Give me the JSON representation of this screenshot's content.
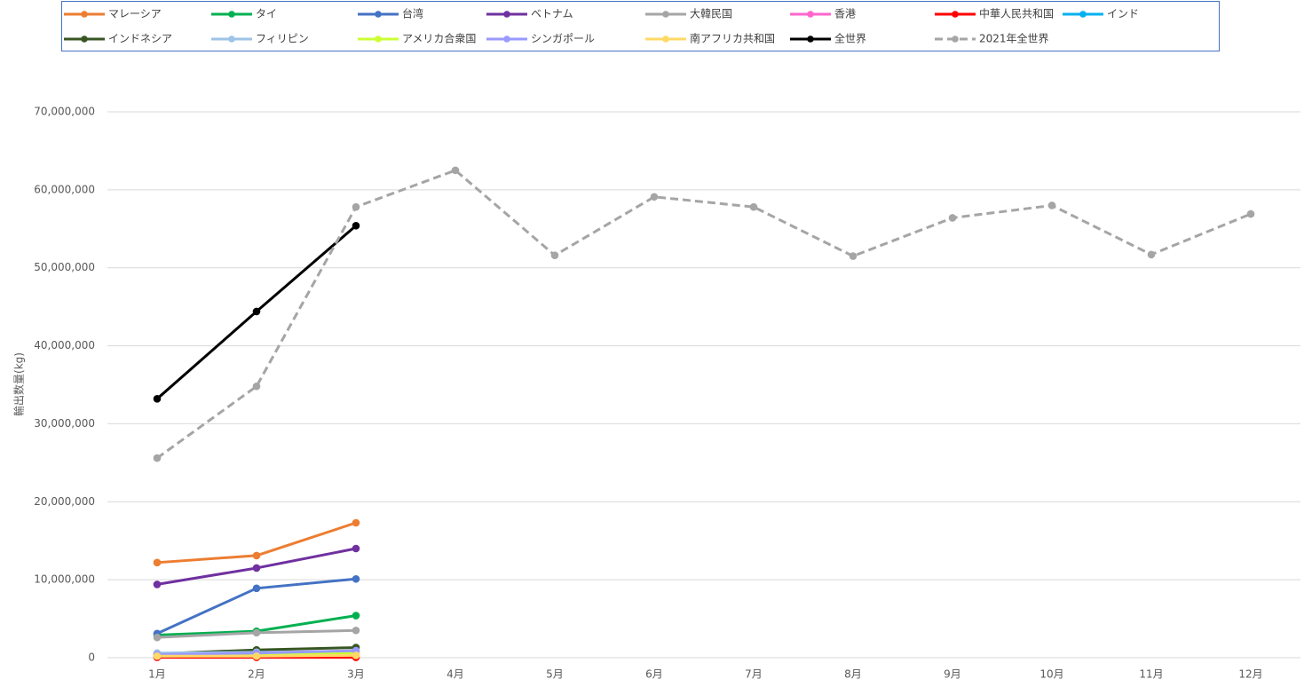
{
  "chart_data": {
    "type": "line",
    "y_label": "輸出数量(kg)",
    "categories": [
      "1月",
      "2月",
      "3月",
      "4月",
      "5月",
      "6月",
      "7月",
      "8月",
      "9月",
      "10月",
      "11月",
      "12月"
    ],
    "ylim": [
      0,
      70000000
    ],
    "yticks": [
      0,
      {
        "value": 10000000,
        "label": "10,000,000"
      },
      {
        "value": 20000000,
        "label": "20,000,000"
      },
      {
        "value": 30000000,
        "label": "30,000,000"
      },
      {
        "value": 40000000,
        "label": "40,000,000"
      },
      {
        "value": 50000000,
        "label": "50,000,000"
      },
      {
        "value": 60000000,
        "label": "60,000,000"
      },
      {
        "value": 70000000,
        "label": "70,000,000"
      }
    ],
    "grid": true,
    "legend": "top",
    "series": [
      {
        "name": "マレーシア",
        "color": "#ED7D31",
        "values": [
          12200000,
          13100000,
          17300000,
          null,
          null,
          null,
          null,
          null,
          null,
          null,
          null,
          null
        ]
      },
      {
        "name": "タイ",
        "color": "#00B050",
        "values": [
          2900000,
          3400000,
          5400000,
          null,
          null,
          null,
          null,
          null,
          null,
          null,
          null,
          null
        ]
      },
      {
        "name": "台湾",
        "color": "#4472C4",
        "values": [
          3100000,
          8900000,
          10100000,
          null,
          null,
          null,
          null,
          null,
          null,
          null,
          null,
          null
        ]
      },
      {
        "name": "ベトナム",
        "color": "#7030A0",
        "values": [
          9400000,
          11500000,
          14000000,
          null,
          null,
          null,
          null,
          null,
          null,
          null,
          null,
          null
        ]
      },
      {
        "name": "大韓民国",
        "color": "#A5A5A5",
        "values": [
          2600000,
          3200000,
          3500000,
          null,
          null,
          null,
          null,
          null,
          null,
          null,
          null,
          null
        ]
      },
      {
        "name": "香港",
        "color": "#FF66CC",
        "values": [
          100000,
          100000,
          100000,
          null,
          null,
          null,
          null,
          null,
          null,
          null,
          null,
          null
        ]
      },
      {
        "name": "中華人民共和国",
        "color": "#FF0000",
        "values": [
          50000,
          50000,
          50000,
          null,
          null,
          null,
          null,
          null,
          null,
          null,
          null,
          null
        ]
      },
      {
        "name": "インド",
        "color": "#00B0F0",
        "values": [
          200000,
          300000,
          400000,
          null,
          null,
          null,
          null,
          null,
          null,
          null,
          null,
          null
        ]
      },
      {
        "name": "インドネシア",
        "color": "#375623",
        "values": [
          500000,
          1000000,
          1300000,
          null,
          null,
          null,
          null,
          null,
          null,
          null,
          null,
          null
        ]
      },
      {
        "name": "フィリピン",
        "color": "#9DC3E6",
        "values": [
          600000,
          700000,
          800000,
          null,
          null,
          null,
          null,
          null,
          null,
          null,
          null,
          null
        ]
      },
      {
        "name": "アメリカ合衆国",
        "color": "#CCFF33",
        "values": [
          300000,
          500000,
          600000,
          null,
          null,
          null,
          null,
          null,
          null,
          null,
          null,
          null
        ]
      },
      {
        "name": "シンガポール",
        "color": "#9999FF",
        "values": [
          400000,
          600000,
          900000,
          null,
          null,
          null,
          null,
          null,
          null,
          null,
          null,
          null
        ]
      },
      {
        "name": "南アフリカ共和国",
        "color": "#FFD966",
        "values": [
          200000,
          200000,
          300000,
          null,
          null,
          null,
          null,
          null,
          null,
          null,
          null,
          null
        ]
      },
      {
        "name": "全世界",
        "color": "#000000",
        "values": [
          33200000,
          44400000,
          55400000,
          null,
          null,
          null,
          null,
          null,
          null,
          null,
          null,
          null
        ]
      },
      {
        "name": "2021年全世界",
        "color": "#A5A5A5",
        "dashed": true,
        "values": [
          25600000,
          34800000,
          57800000,
          62500000,
          51600000,
          59100000,
          57800000,
          51500000,
          56400000,
          58000000,
          51700000,
          56900000
        ]
      }
    ]
  }
}
